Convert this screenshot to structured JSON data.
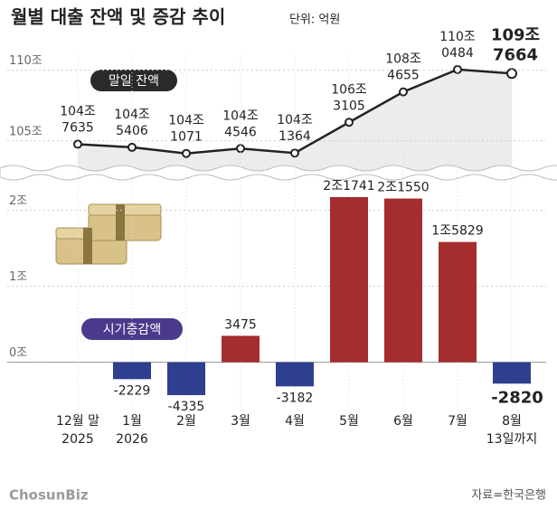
{
  "title": "월별 대출 잔액 및 증감 추이",
  "unit": "단위: 억원",
  "source": "자료=한국은행",
  "logo": "ChosunBiz",
  "chart_data": [
    {
      "type": "line",
      "series": [
        {
          "name": "말일 잔액",
          "color": "#222222",
          "values": [
            1047635,
            1045406,
            1041071,
            1044546,
            1041364,
            1063105,
            1084655,
            1100484,
            1097664
          ],
          "value_labels": [
            [
              "104조",
              "7635"
            ],
            [
              "104조",
              "5406"
            ],
            [
              "104조",
              "1071"
            ],
            [
              "104조",
              "4546"
            ],
            [
              "104조",
              "1364"
            ],
            [
              "106조",
              "3105"
            ],
            [
              "108조",
              "4655"
            ],
            [
              "110조",
              "0484"
            ],
            [
              "109조",
              "7664"
            ]
          ]
        }
      ],
      "ylim": [
        1030000,
        1110000
      ],
      "yticks": [
        {
          "value": 1050000,
          "label": "105조"
        },
        {
          "value": 1100000,
          "label": "110조"
        }
      ]
    },
    {
      "type": "bar",
      "categories": [
        [
          "12월 말",
          "2025"
        ],
        [
          "1월",
          "2026"
        ],
        [
          "2월"
        ],
        [
          "3월"
        ],
        [
          "4월"
        ],
        [
          "5월"
        ],
        [
          "6월"
        ],
        [
          "7월"
        ],
        [
          "8월",
          "13일까지"
        ]
      ],
      "series": [
        {
          "name": "시기증감액",
          "values": [
            null,
            -2229,
            -4335,
            3475,
            -3182,
            21741,
            21550,
            15829,
            -2820
          ],
          "value_labels": [
            null,
            "-2229",
            "-4335",
            "3475",
            "-3182",
            "2조1741",
            "2조1550",
            "1조5829",
            "-2820"
          ]
        }
      ],
      "positive_color": "#a52d2d",
      "negative_color": "#2f3f8f",
      "ylim": [
        -6000,
        24000
      ],
      "yticks": [
        {
          "value": 0,
          "label": "0조"
        },
        {
          "value": 10000,
          "label": "1조"
        },
        {
          "value": 20000,
          "label": "2조"
        }
      ]
    }
  ]
}
